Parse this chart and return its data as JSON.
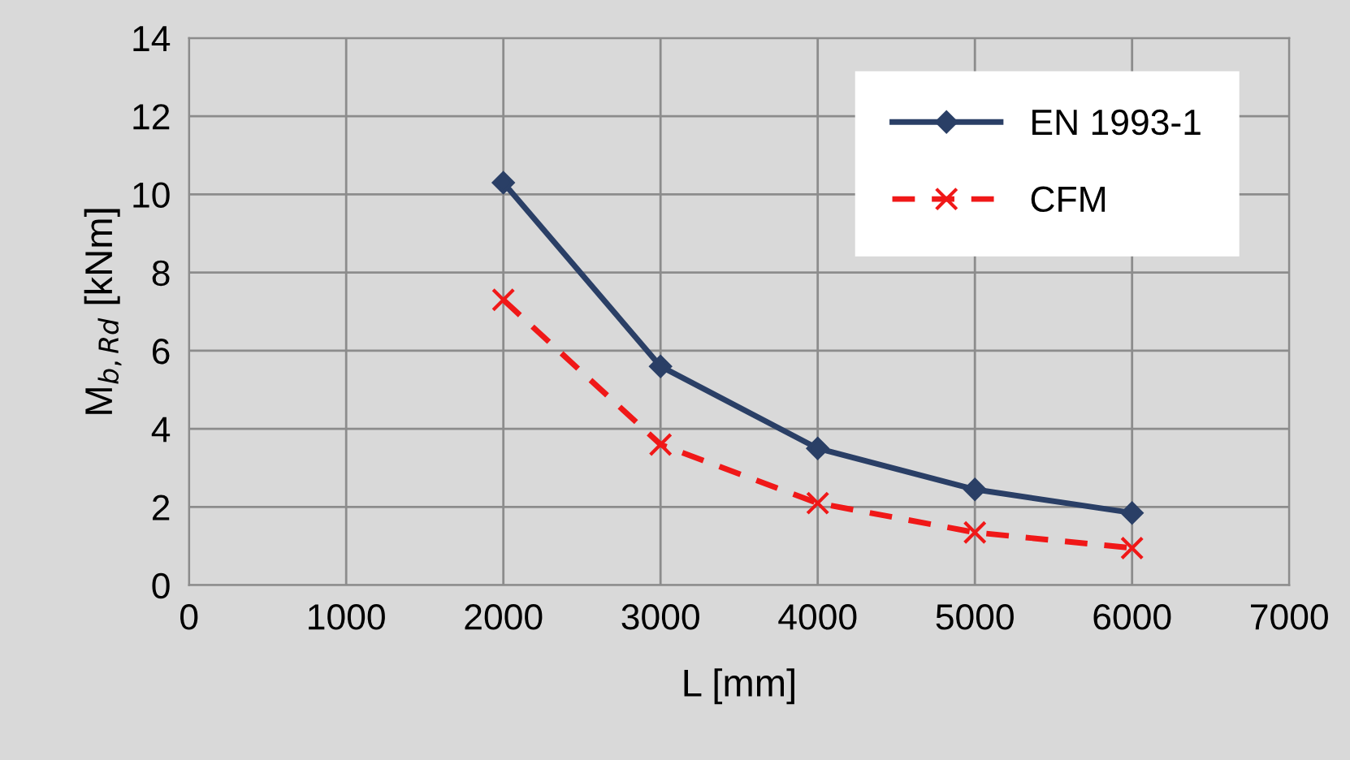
{
  "chart_data": {
    "type": "line",
    "xlabel": "L [mm]",
    "ylabel": "M$_{b,Rd}$ [kNm]",
    "x": [
      2000,
      3000,
      4000,
      5000,
      6000
    ],
    "series": [
      {
        "name": "EN 1993-1",
        "color": "#2a3f66",
        "marker": "diamond",
        "line_style": "solid",
        "values": [
          10.3,
          5.6,
          3.5,
          2.45,
          1.85
        ]
      },
      {
        "name": "CFM",
        "color": "#f01818",
        "marker": "cross",
        "line_style": "dashed",
        "values": [
          7.3,
          3.6,
          2.1,
          1.35,
          0.95
        ]
      }
    ],
    "xlim": [
      0,
      7000
    ],
    "xticks": [
      0,
      1000,
      2000,
      3000,
      4000,
      5000,
      6000,
      7000
    ],
    "ylim": [
      0,
      14
    ],
    "yticks": [
      0,
      2,
      4,
      6,
      8,
      10,
      12,
      14
    ],
    "grid": true,
    "legend": "top right"
  }
}
